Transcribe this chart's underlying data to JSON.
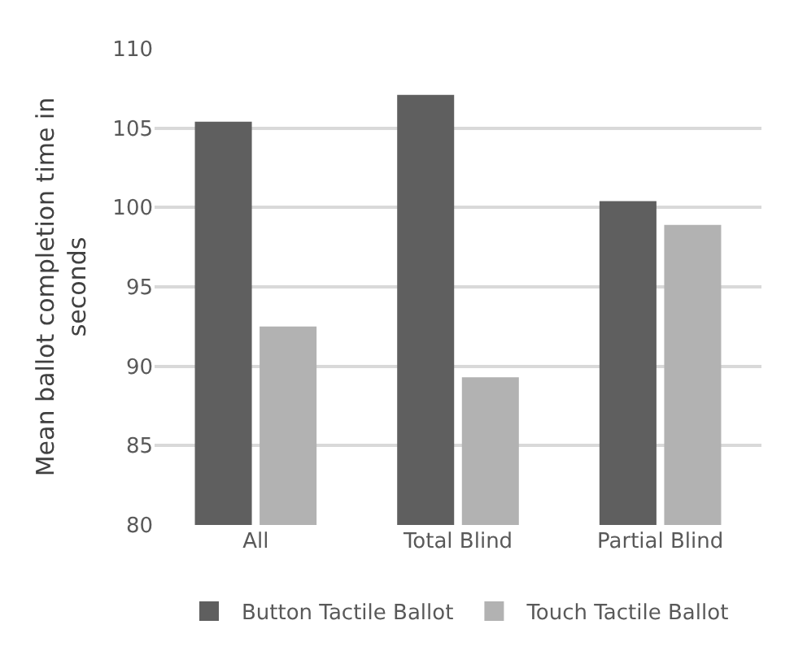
{
  "chart_data": {
    "type": "bar",
    "ylabel": "Mean ballot completion time in seconds",
    "categories": [
      "All",
      "Total Blind",
      "Partial Blind"
    ],
    "series": [
      {
        "name": "Button Tactile Ballot",
        "color": "#5f5f5f",
        "values": [
          105.4,
          107.1,
          100.4
        ]
      },
      {
        "name": "Touch Tactile Ballot",
        "color": "#b2b2b2",
        "values": [
          92.5,
          89.3,
          98.9
        ]
      }
    ],
    "ylim": [
      80,
      110
    ],
    "yticks": [
      80,
      85,
      90,
      95,
      100,
      105,
      110
    ],
    "grid": "y",
    "legend": "bottom"
  }
}
